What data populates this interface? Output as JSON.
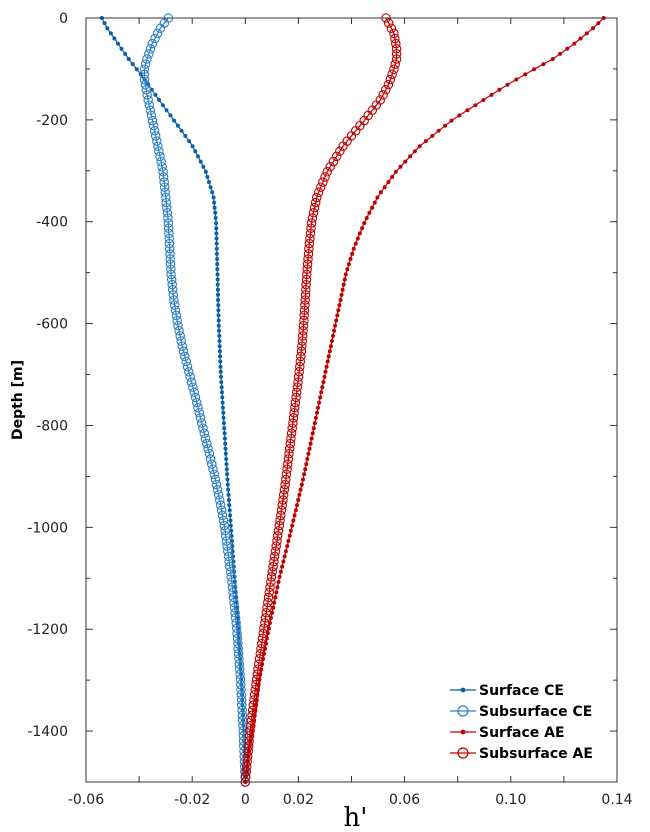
{
  "chart_data": {
    "type": "line",
    "title": "",
    "xlabel": "h'",
    "ylabel": "Depth [m]",
    "xlim": [
      -0.06,
      0.14
    ],
    "ylim": [
      -1500,
      0
    ],
    "xticks": [
      -0.06,
      -0.02,
      0,
      0.02,
      0.06,
      0.1,
      0.14
    ],
    "xtick_labels": [
      "-0.06",
      "-0.02",
      "0",
      "0.02",
      "0.06",
      "0.10",
      "0.14"
    ],
    "yticks": [
      0,
      -200,
      -400,
      -600,
      -800,
      -1000,
      -1200,
      -1400
    ],
    "ytick_labels": [
      "0",
      "-200",
      "-400",
      "-600",
      "-800",
      "-1000",
      "-1200",
      "-1400"
    ],
    "grid": false,
    "legend_position": "bottom-right",
    "series": [
      {
        "name": "Surface CE",
        "color": "#0b5fa5",
        "marker": "filled-dot",
        "depth": [
          0,
          -20,
          -50,
          -80,
          -100,
          -120,
          -150,
          -200,
          -250,
          -300,
          -350,
          -400,
          -500,
          -600,
          -700,
          -800,
          -900,
          -1000,
          -1100,
          -1200,
          -1300,
          -1400,
          -1500
        ],
        "values": [
          -0.054,
          -0.052,
          -0.048,
          -0.044,
          -0.041,
          -0.038,
          -0.034,
          -0.027,
          -0.02,
          -0.015,
          -0.012,
          -0.011,
          -0.0105,
          -0.01,
          -0.0092,
          -0.008,
          -0.0068,
          -0.0054,
          -0.004,
          -0.0027,
          -0.0015,
          -0.0006,
          0.0
        ]
      },
      {
        "name": "Subsurface CE",
        "color": "#2f7fc1",
        "marker": "open-circle",
        "depth": [
          0,
          -20,
          -50,
          -80,
          -100,
          -120,
          -150,
          -200,
          -250,
          -300,
          -350,
          -400,
          -450,
          -500,
          -550,
          -600,
          -650,
          -700,
          -750,
          -800,
          -850,
          -900,
          -950,
          -1000,
          -1100,
          -1200,
          -1300,
          -1400,
          -1500
        ],
        "values": [
          -0.029,
          -0.032,
          -0.035,
          -0.037,
          -0.038,
          -0.038,
          -0.037,
          -0.035,
          -0.033,
          -0.031,
          -0.03,
          -0.029,
          -0.0285,
          -0.028,
          -0.027,
          -0.0255,
          -0.0235,
          -0.021,
          -0.0185,
          -0.0162,
          -0.0138,
          -0.0115,
          -0.0095,
          -0.0078,
          -0.0052,
          -0.0032,
          -0.0018,
          -0.0008,
          0.0
        ]
      },
      {
        "name": "Surface AE",
        "color": "#c00000",
        "marker": "filled-dot",
        "depth": [
          0,
          -20,
          -50,
          -80,
          -100,
          -130,
          -160,
          -200,
          -250,
          -300,
          -350,
          -400,
          -450,
          -500,
          -550,
          -600,
          -650,
          -700,
          -750,
          -800,
          -900,
          -1000,
          -1100,
          -1200,
          -1300,
          -1400,
          -1500
        ],
        "values": [
          0.135,
          0.131,
          0.124,
          0.116,
          0.109,
          0.099,
          0.09,
          0.078,
          0.066,
          0.057,
          0.05,
          0.045,
          0.041,
          0.038,
          0.036,
          0.034,
          0.032,
          0.03,
          0.028,
          0.026,
          0.022,
          0.0175,
          0.0128,
          0.0088,
          0.0052,
          0.0024,
          0.0
        ]
      },
      {
        "name": "Subsurface AE",
        "color": "#c00000",
        "marker": "open-circle",
        "depth": [
          0,
          -30,
          -60,
          -80,
          -100,
          -130,
          -160,
          -200,
          -250,
          -300,
          -350,
          -400,
          -450,
          -500,
          -550,
          -600,
          -650,
          -700,
          -750,
          -800,
          -850,
          -900,
          -950,
          -1000,
          -1100,
          -1200,
          -1300,
          -1400,
          -1500
        ],
        "values": [
          0.053,
          0.056,
          0.057,
          0.057,
          0.056,
          0.054,
          0.051,
          0.045,
          0.037,
          0.031,
          0.027,
          0.025,
          0.024,
          0.0232,
          0.0226,
          0.022,
          0.0212,
          0.0202,
          0.019,
          0.0178,
          0.0166,
          0.0154,
          0.0141,
          0.0127,
          0.0098,
          0.007,
          0.0042,
          0.0018,
          0.0
        ]
      }
    ]
  }
}
